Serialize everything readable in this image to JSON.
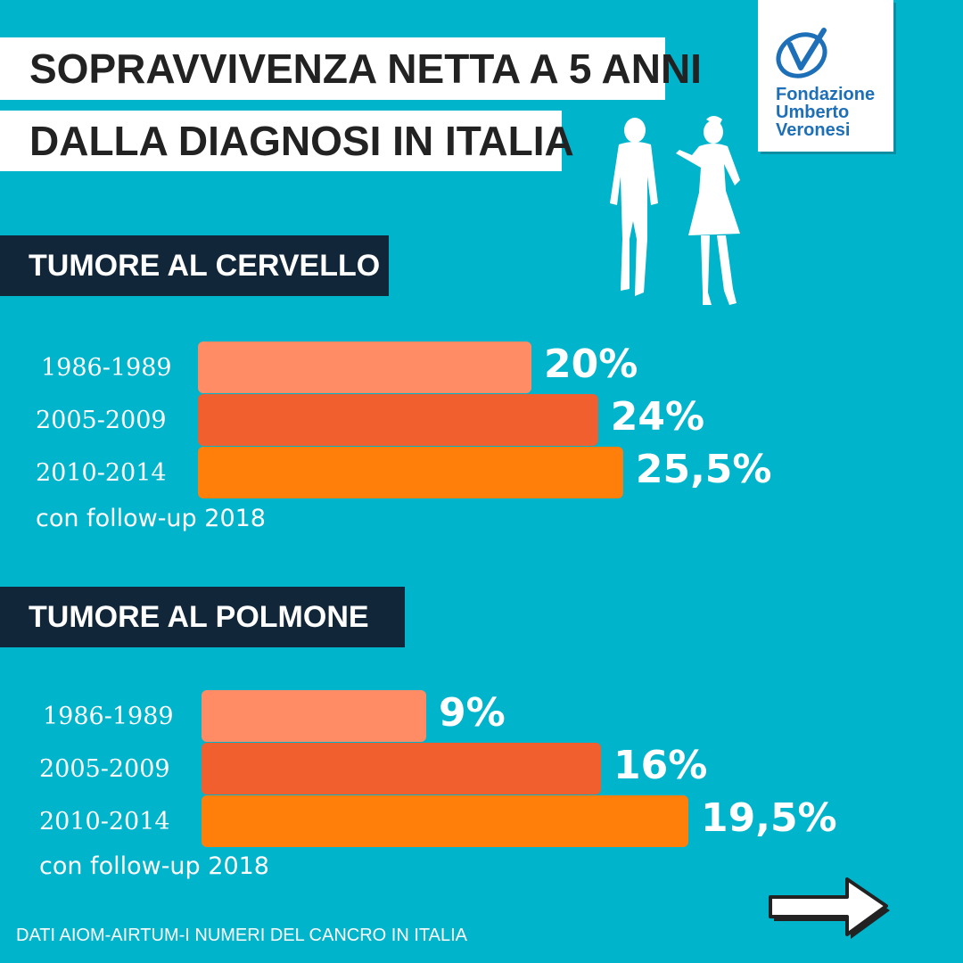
{
  "title": {
    "line1": "SOPRAVVIVENZA NETTA A 5 ANNI",
    "line2": "DALLA DIAGNOSI IN ITALIA"
  },
  "logo": {
    "line1": "Fondazione",
    "line2": "Umberto",
    "line3": "Veronesi",
    "color": "#1d6fb8"
  },
  "source": "DATI AIOM-AIRTUM-I NUMERI DEL CANCRO IN ITALIA",
  "colors": {
    "background": "#00b4cc",
    "header": "#12263a",
    "bar_1986_1989": "#ff8c64",
    "bar_2005_2009": "#f05f2d",
    "bar_2010_2014": "#ff7f0a"
  },
  "icons": [
    "people-silhouette-icon",
    "arrow-right-icon"
  ],
  "chart_data": [
    {
      "type": "bar",
      "orientation": "horizontal",
      "title": "TUMORE AL CERVELLO",
      "categories": [
        "1986-1989",
        "2005-2009",
        "2010-2014"
      ],
      "values": [
        20,
        24,
        25.5
      ],
      "value_labels": [
        "20%",
        "24%",
        "25,5%"
      ],
      "footnote": "con follow-up 2018",
      "unit": "%"
    },
    {
      "type": "bar",
      "orientation": "horizontal",
      "title": "TUMORE AL POLMONE",
      "categories": [
        "1986-1989",
        "2005-2009",
        "2010-2014"
      ],
      "values": [
        9,
        16,
        19.5
      ],
      "value_labels": [
        "9%",
        "16%",
        "19,5%"
      ],
      "footnote": "con follow-up 2018",
      "unit": "%"
    }
  ]
}
